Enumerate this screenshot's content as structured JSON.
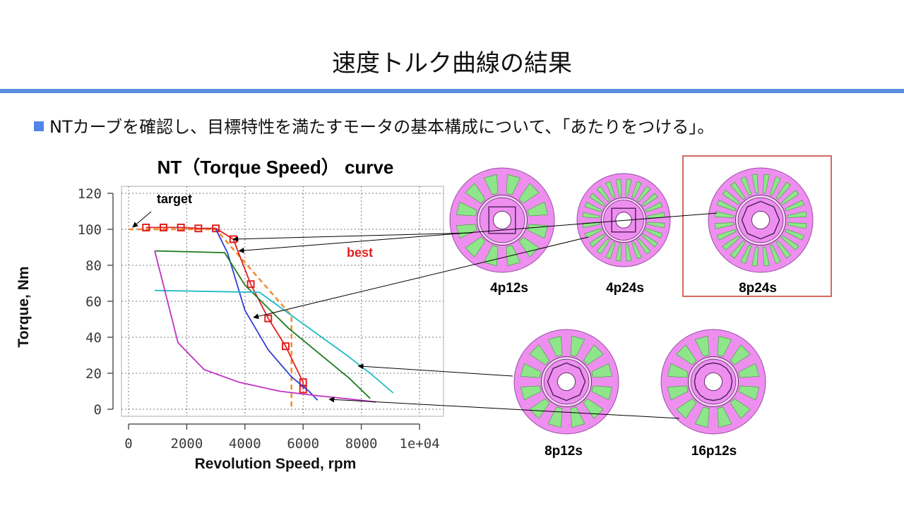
{
  "slide": {
    "title": "速度トルク曲線の結果",
    "bullet": "NTカーブを確認し、目標特性を満たすモータの基本構成について、「あたりをつける」。",
    "accent_color": "#5b8ede"
  },
  "chart_data": {
    "type": "line",
    "title": "NT（Torque Speed） curve",
    "xlabel": "Revolution Speed, rpm",
    "ylabel": "Torque, Nm",
    "xlim": [
      0,
      10000
    ],
    "ylim": [
      0,
      120
    ],
    "xticks": [
      0,
      2000,
      4000,
      6000,
      8000,
      10000
    ],
    "xtick_labels": [
      "0",
      "2000",
      "4000",
      "6000",
      "8000",
      "1e+04"
    ],
    "yticks": [
      0,
      20,
      40,
      60,
      80,
      100,
      120
    ],
    "ytick_labels": [
      "0",
      "20",
      "40",
      "60",
      "80",
      "100",
      "120"
    ],
    "grid": true,
    "series": [
      {
        "name": "target",
        "color": "#f28c28",
        "style": "dashed",
        "x": [
          0,
          3000,
          5600,
          5600
        ],
        "y": [
          100,
          100,
          52,
          0
        ]
      },
      {
        "name": "8p24s",
        "color": "#e02020",
        "style": "solid",
        "markers": true,
        "x": [
          600,
          1200,
          1800,
          2400,
          3000,
          3600,
          4200,
          4800,
          5400,
          6000,
          6000
        ],
        "y": [
          101,
          101,
          101,
          100.5,
          100.5,
          94.5,
          69.5,
          50.5,
          35,
          15,
          11
        ]
      },
      {
        "name": "4p12s",
        "color": "#2b3fd6",
        "style": "solid",
        "x": [
          3000,
          3400,
          4000,
          4800,
          5600,
          6200,
          6500
        ],
        "y": [
          100,
          87,
          55,
          33,
          18,
          10,
          5
        ]
      },
      {
        "name": "4p24s",
        "color": "#1e7a1e",
        "style": "solid",
        "x": [
          900,
          3300,
          4000,
          5500,
          7600,
          8300
        ],
        "y": [
          88,
          87,
          69,
          45,
          17,
          6
        ]
      },
      {
        "name": "8p12s",
        "color": "#1fbcc8",
        "style": "solid",
        "x": [
          900,
          4500,
          5700,
          7500,
          8300,
          9100
        ],
        "y": [
          66,
          65,
          51,
          30,
          20,
          9
        ]
      },
      {
        "name": "16p12s",
        "color": "#c030c0",
        "style": "solid",
        "x": [
          900,
          1700,
          2600,
          3800,
          5200,
          6500,
          7700,
          8500
        ],
        "y": [
          88,
          37,
          22,
          15,
          10,
          7.5,
          5.5,
          4
        ]
      }
    ],
    "annotations": [
      {
        "text": "target",
        "color": "#000000",
        "points_to": [
          0,
          100
        ]
      },
      {
        "text": "best",
        "color": "#e02020"
      }
    ]
  },
  "motors": [
    {
      "label": "4p12s",
      "poles": 4,
      "slots": 12,
      "highlighted": false
    },
    {
      "label": "4p24s",
      "poles": 4,
      "slots": 24,
      "highlighted": false
    },
    {
      "label": "8p24s",
      "poles": 8,
      "slots": 24,
      "highlighted": true
    },
    {
      "label": "8p12s",
      "poles": 8,
      "slots": 12,
      "highlighted": false
    },
    {
      "label": "16p12s",
      "poles": 16,
      "slots": 12,
      "highlighted": false
    }
  ],
  "colors": {
    "stator": "#ee8ff0",
    "stator_edge": "#9b4aa5",
    "coil": "#8fe68a",
    "rotor": "#ee8ff0",
    "highlight_box": "#c0392b"
  }
}
